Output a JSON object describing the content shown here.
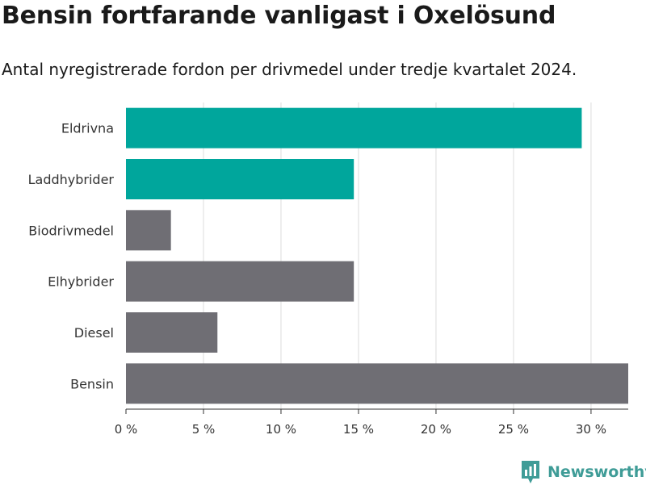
{
  "title": "Bensin fortfarande vanligast i Oxelösund",
  "subtitle": "Antal nyregistrerade fordon per drivmedel under tredje kvartalet 2024.",
  "brand": {
    "name": "Newsworthy",
    "icon": "newsworthy-logo-icon",
    "color": "#3f9c97"
  },
  "colors": {
    "highlight": "#00a69c",
    "default": "#6f6e74",
    "grid": "#dcdcdc",
    "axis": "#333333"
  },
  "chart_data": {
    "type": "bar",
    "orientation": "horizontal",
    "categories": [
      "Eldrivna",
      "Laddhybrider",
      "Biodrivmedel",
      "Elhybrider",
      "Diesel",
      "Bensin"
    ],
    "values": [
      29.4,
      14.7,
      2.9,
      14.7,
      5.9,
      32.4
    ],
    "highlighted": [
      true,
      true,
      false,
      false,
      false,
      false
    ],
    "xlim": [
      0,
      32.4
    ],
    "xticks": [
      0,
      5,
      10,
      15,
      20,
      25,
      30
    ],
    "xtick_labels": [
      "0 %",
      "5 %",
      "10 %",
      "15 %",
      "20 %",
      "25 %",
      "30 %"
    ],
    "grid": "vertical",
    "legend": "none"
  }
}
